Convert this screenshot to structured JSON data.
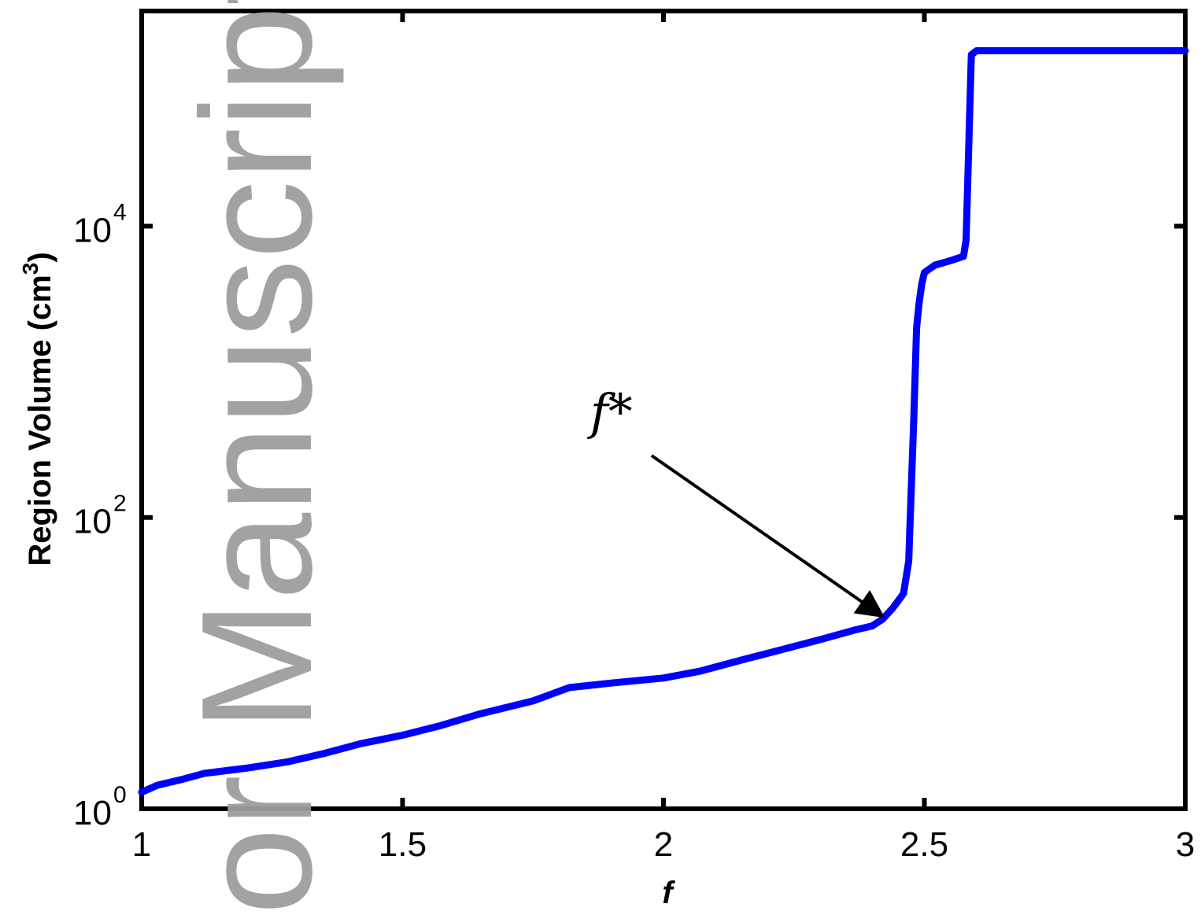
{
  "watermark": "or Manuscript",
  "chart_data": {
    "type": "line",
    "title": "",
    "xlabel": "f",
    "ylabel": "Region Volume (cm",
    "ylabel_sup": "3",
    "ylabel_close": ")",
    "xlim": [
      1,
      3
    ],
    "ylim": [
      1,
      300000
    ],
    "yscale": "log",
    "grid": false,
    "xticks": [
      {
        "value": 1,
        "label": "1"
      },
      {
        "value": 1.5,
        "label": "1.5"
      },
      {
        "value": 2,
        "label": "2"
      },
      {
        "value": 2.5,
        "label": "2.5"
      },
      {
        "value": 3,
        "label": "3"
      }
    ],
    "yticks": [
      {
        "value": 1,
        "base": "10",
        "exp": "0"
      },
      {
        "value": 100,
        "base": "10",
        "exp": "2"
      },
      {
        "value": 10000,
        "base": "10",
        "exp": "4"
      }
    ],
    "series": [
      {
        "color": "#0000ff",
        "x": [
          1.0,
          1.03,
          1.08,
          1.12,
          1.2,
          1.28,
          1.35,
          1.42,
          1.5,
          1.57,
          1.65,
          1.75,
          1.8,
          1.82,
          1.9,
          2.0,
          2.07,
          2.15,
          2.22,
          2.3,
          2.37,
          2.4,
          2.42,
          2.44,
          2.46,
          2.47,
          2.48,
          2.485,
          2.49,
          2.495,
          2.5,
          2.52,
          2.55,
          2.575,
          2.58,
          2.59,
          2.6,
          2.7,
          2.8,
          2.9,
          3.0
        ],
        "y": [
          1.3,
          1.45,
          1.6,
          1.75,
          1.9,
          2.1,
          2.4,
          2.8,
          3.2,
          3.7,
          4.5,
          5.5,
          6.4,
          6.8,
          7.3,
          7.9,
          8.8,
          10.5,
          12.2,
          14.5,
          17.0,
          18.0,
          20.0,
          24.0,
          30.0,
          50.0,
          500.0,
          2000.0,
          3000.0,
          4000.0,
          4800.0,
          5400.0,
          5800.0,
          6200.0,
          8000.0,
          150000.0,
          160000.0,
          160000.0,
          160000.0,
          160000.0,
          160000.0
        ]
      }
    ],
    "annotations": [
      {
        "text": "f*",
        "arrow_from": [
          1.95,
          350
        ],
        "arrow_to": [
          2.42,
          21
        ]
      }
    ]
  }
}
